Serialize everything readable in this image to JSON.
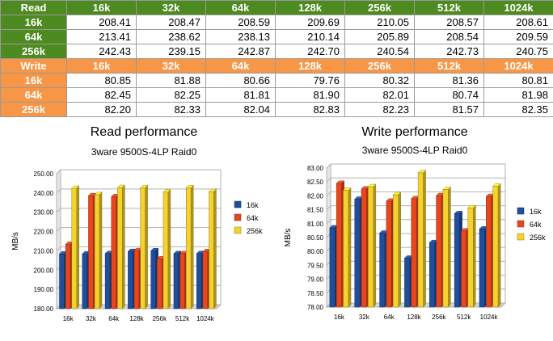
{
  "table": {
    "read_header": [
      "Read",
      "16k",
      "32k",
      "64k",
      "128k",
      "256k",
      "512k",
      "1024k"
    ],
    "read_rows": [
      {
        "label": "16k",
        "values": [
          "208.41",
          "208.47",
          "208.59",
          "209.69",
          "210.05",
          "208.57",
          "208.61"
        ]
      },
      {
        "label": "64k",
        "values": [
          "213.41",
          "238.62",
          "238.13",
          "210.14",
          "205.89",
          "208.54",
          "209.59"
        ]
      },
      {
        "label": "256k",
        "values": [
          "242.43",
          "239.15",
          "242.87",
          "242.70",
          "240.54",
          "242.73",
          "240.75"
        ]
      }
    ],
    "write_header": [
      "Write",
      "16k",
      "32k",
      "64k",
      "128k",
      "256k",
      "512k",
      "1024k"
    ],
    "write_rows": [
      {
        "label": "16k",
        "values": [
          "80.85",
          "81.88",
          "80.66",
          "79.76",
          "80.32",
          "81.36",
          "80.81"
        ]
      },
      {
        "label": "64k",
        "values": [
          "82.45",
          "82.25",
          "81.81",
          "81.90",
          "82.01",
          "80.74",
          "81.98"
        ]
      },
      {
        "label": "256k",
        "values": [
          "82.20",
          "82.33",
          "82.04",
          "82.83",
          "82.23",
          "81.57",
          "82.35"
        ]
      }
    ]
  },
  "colors": {
    "read_header_bg": "#4d8a1f",
    "write_header_bg": "#f79646",
    "series_16k": "#1f4e9c",
    "series_64k": "#e8461f",
    "series_256k": "#f5d22d"
  },
  "chart_data": [
    {
      "type": "bar",
      "title": "Read performance",
      "subtitle": "3ware 9500S-4LP Raid0",
      "xlabel": "",
      "ylabel": "MB/s",
      "categories": [
        "16k",
        "32k",
        "64k",
        "128k",
        "256k",
        "512k",
        "1024k"
      ],
      "ylim": [
        180,
        250
      ],
      "yticks": [
        180,
        190,
        200,
        210,
        220,
        230,
        240,
        250
      ],
      "ytick_labels": [
        "180.00",
        "190.00",
        "200.00",
        "210.00",
        "220.00",
        "230.00",
        "240.00",
        "250.00"
      ],
      "grid": true,
      "legend_position": "right",
      "series": [
        {
          "name": "16k",
          "color": "#1f4e9c",
          "values": [
            208.41,
            208.47,
            208.59,
            209.69,
            210.05,
            208.57,
            208.61
          ]
        },
        {
          "name": "64k",
          "color": "#e8461f",
          "values": [
            213.41,
            238.62,
            238.13,
            210.14,
            205.89,
            208.54,
            209.59
          ]
        },
        {
          "name": "256k",
          "color": "#f5d22d",
          "values": [
            242.43,
            239.15,
            242.87,
            242.7,
            240.54,
            242.73,
            240.75
          ]
        }
      ]
    },
    {
      "type": "bar",
      "title": "Write performance",
      "subtitle": "3ware 9500S-4LP Raid0",
      "xlabel": "",
      "ylabel": "MB/s",
      "categories": [
        "16k",
        "32k",
        "64k",
        "128k",
        "256k",
        "512k",
        "1024k"
      ],
      "ylim": [
        78,
        83
      ],
      "yticks": [
        78,
        78.5,
        79,
        79.5,
        80,
        80.5,
        81,
        81.5,
        82,
        82.5,
        83
      ],
      "ytick_labels": [
        "78.00",
        "78.50",
        "79.00",
        "79.50",
        "80.00",
        "80.50",
        "81.00",
        "81.50",
        "82.00",
        "82.50",
        "83.00"
      ],
      "grid": true,
      "legend_position": "right",
      "series": [
        {
          "name": "16k",
          "color": "#1f4e9c",
          "values": [
            80.85,
            81.88,
            80.66,
            79.76,
            80.32,
            81.36,
            80.81
          ]
        },
        {
          "name": "64k",
          "color": "#e8461f",
          "values": [
            82.45,
            82.25,
            81.81,
            81.9,
            82.01,
            80.74,
            81.98
          ]
        },
        {
          "name": "256k",
          "color": "#f5d22d",
          "values": [
            82.2,
            82.33,
            82.04,
            82.83,
            82.23,
            81.57,
            82.35
          ]
        }
      ]
    }
  ]
}
